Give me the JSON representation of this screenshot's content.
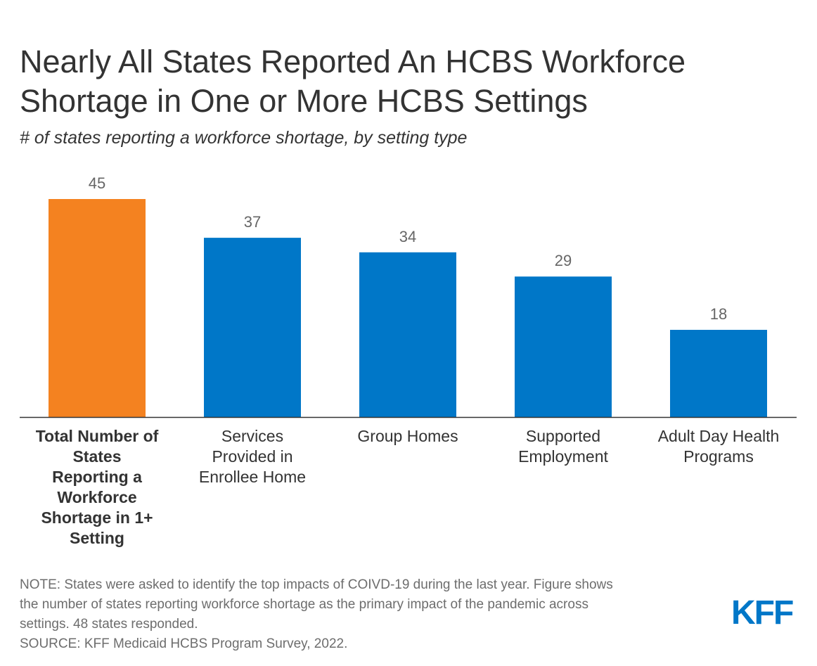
{
  "header": {
    "title_line1": "Nearly All States Reported An HCBS Workforce",
    "title_line2": "Shortage in One or More HCBS Settings",
    "subtitle": "# of states reporting a workforce shortage, by setting type"
  },
  "chart_data": {
    "type": "bar",
    "title": "Nearly All States Reported An HCBS Workforce Shortage in One or More HCBS Settings",
    "subtitle": "# of states reporting a workforce shortage, by setting type",
    "categories": [
      "Total Number of States Reporting a Workforce Shortage in 1+ Setting",
      "Services Provided in Enrollee Home",
      "Group Homes",
      "Supported Employment",
      "Adult Day Health Programs"
    ],
    "category_lines": [
      [
        "Total Number of",
        "States",
        "Reporting a",
        "Workforce",
        "Shortage in 1+",
        "Setting"
      ],
      [
        "Services",
        "Provided in",
        "Enrollee Home"
      ],
      [
        "Group Homes"
      ],
      [
        "Supported",
        "Employment"
      ],
      [
        "Adult Day Health",
        "Programs"
      ]
    ],
    "values": [
      45,
      37,
      34,
      29,
      18
    ],
    "highlight_index": 0,
    "colors": {
      "highlight": "#f48220",
      "default": "#0077c8",
      "label": "#666666",
      "axis": "#333333",
      "category": "#333333"
    },
    "xlabel": "",
    "ylabel": "",
    "ylim": [
      0,
      45
    ],
    "grid": false,
    "legend": "none"
  },
  "footer": {
    "note_line1": "NOTE: States were asked to identify the top impacts of COIVD-19 during the last year. Figure shows",
    "note_line2": "the number of states reporting workforce shortage as the primary impact of the pandemic across",
    "note_line3": "settings. 48 states responded.",
    "source": "SOURCE: KFF Medicaid HCBS Program Survey, 2022.",
    "logo_text": "KFF"
  }
}
